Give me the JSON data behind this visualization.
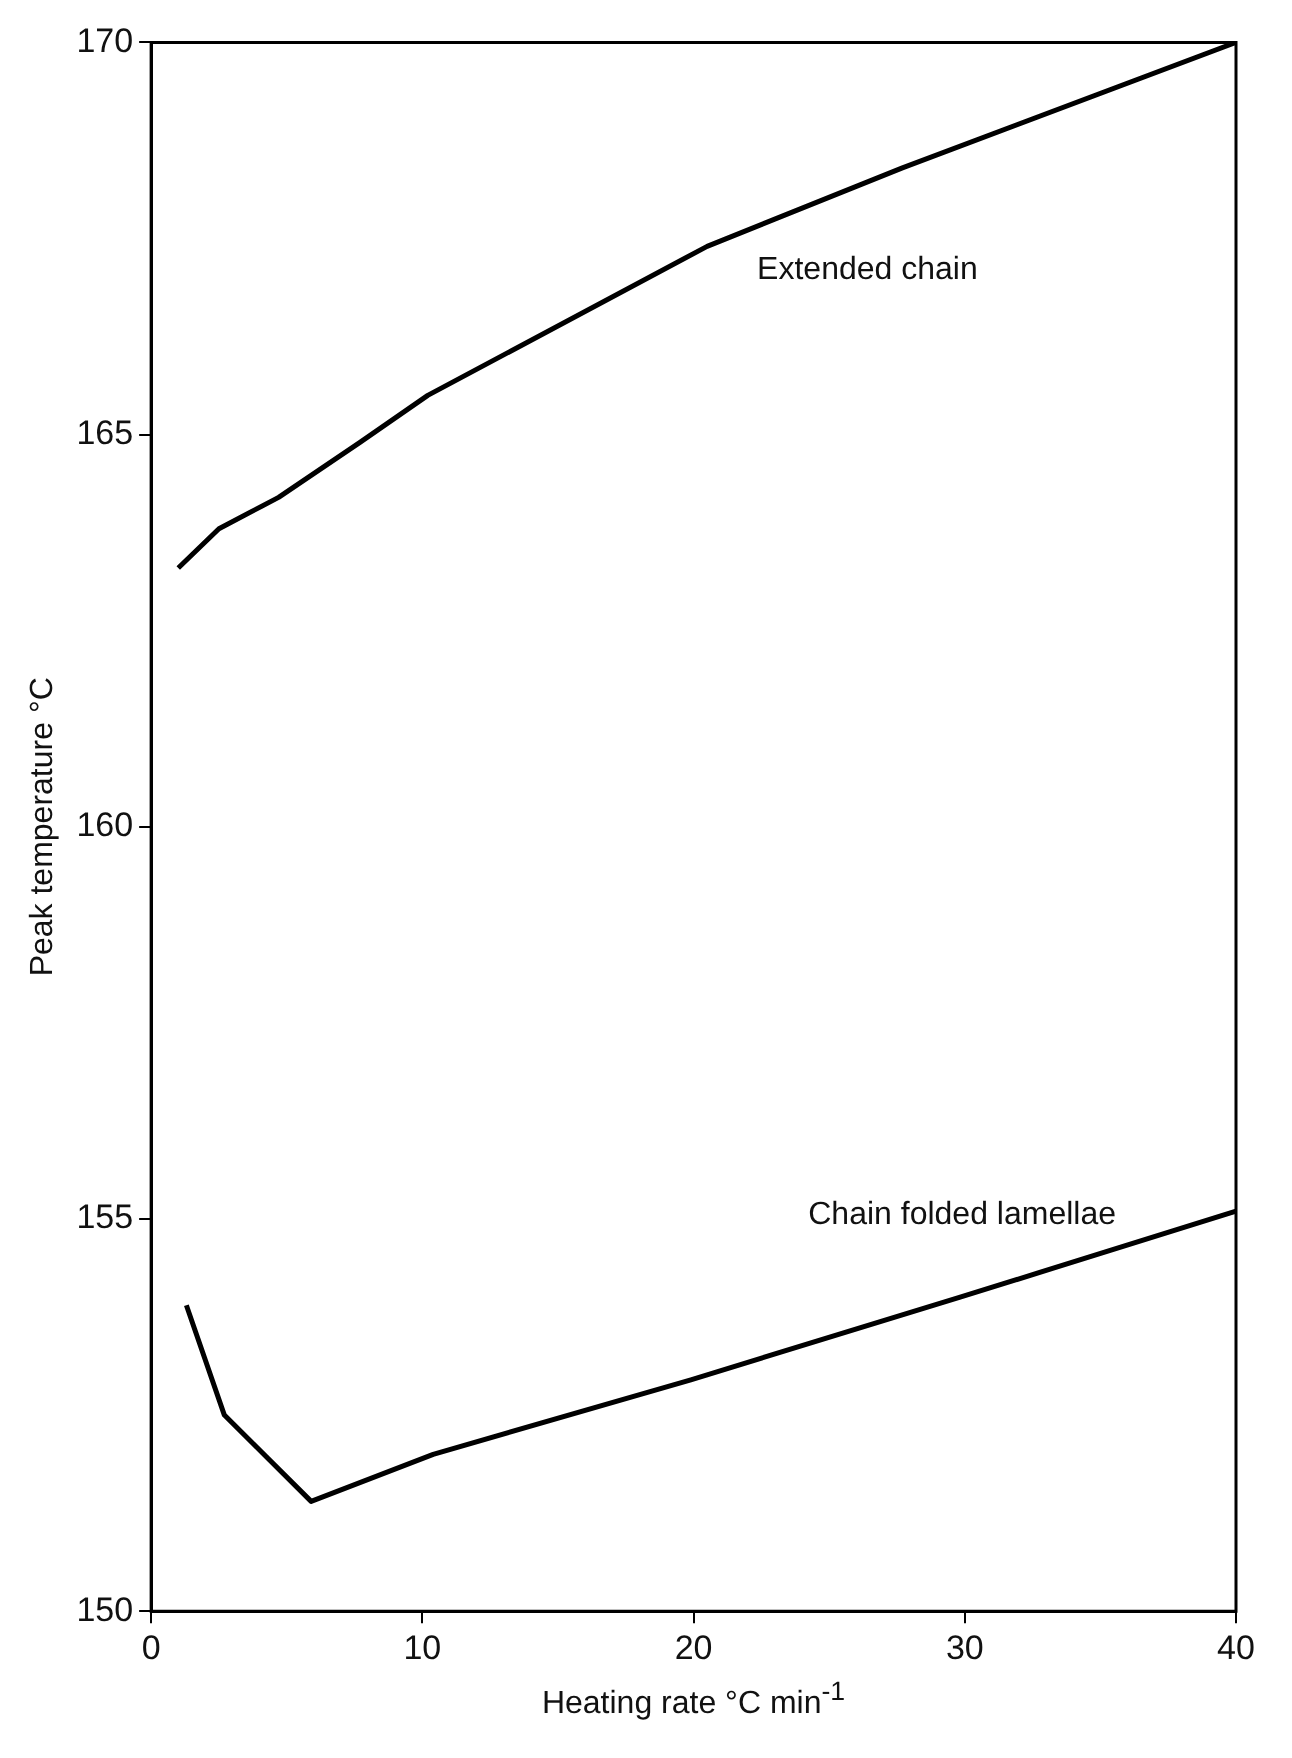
{
  "chart_data": {
    "type": "line",
    "xlabel": "Heating rate °C min$^{-1}$",
    "ylabel": "Peak temperature °C",
    "xlim": [
      0,
      40
    ],
    "xticks": [
      0,
      10,
      20,
      30,
      40
    ],
    "ylim": [
      150,
      170
    ],
    "yticks": [
      150,
      155,
      160,
      165,
      170
    ],
    "grid": false,
    "legend": false,
    "marker": "none",
    "line_style": "solid",
    "series": [
      {
        "name": "Extended chain",
        "color": "#000000",
        "x": [
          1.0,
          2.5,
          4.7,
          7.7,
          10.2,
          20.5,
          27.7,
          40
        ],
        "values": [
          163.3,
          163.8,
          164.2,
          164.9,
          165.5,
          167.4,
          168.4,
          170
        ]
      },
      {
        "name": "Chain folded lamellae",
        "color": "#000000",
        "x": [
          1.3,
          2.7,
          5.9,
          10.4,
          19.9,
          29.8,
          40
        ],
        "values": [
          153.9,
          152.5,
          151.4,
          152.0,
          152.95,
          154.0,
          155.1
        ]
      }
    ]
  }
}
